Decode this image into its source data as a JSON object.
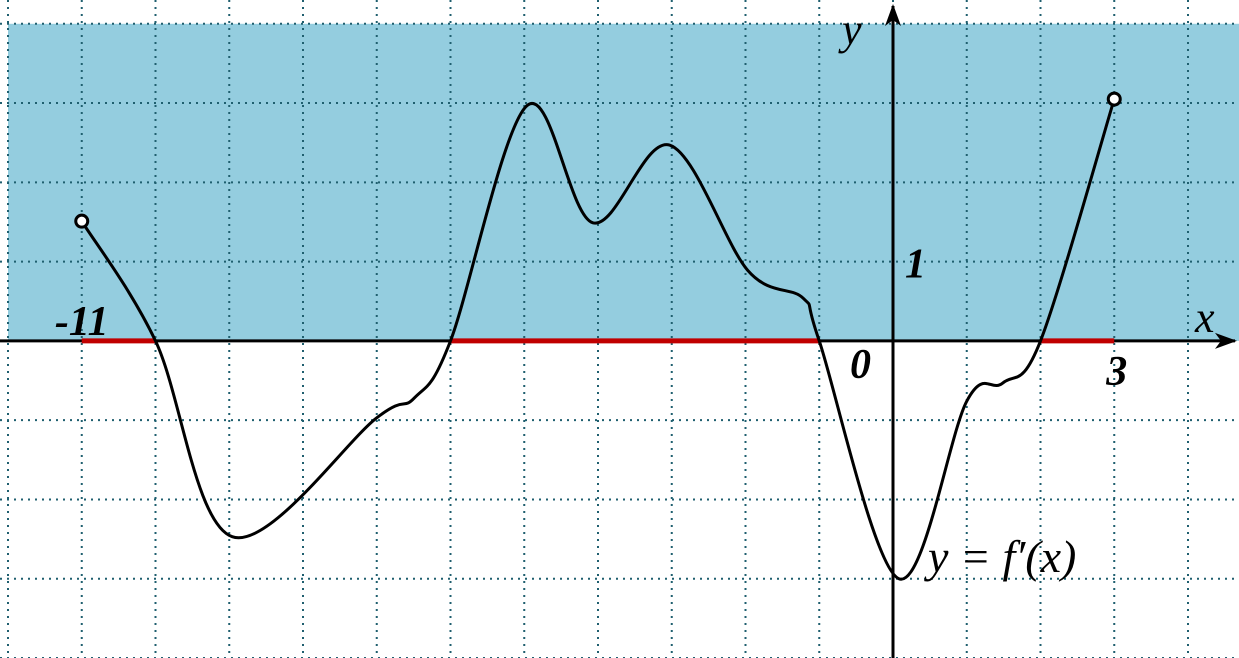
{
  "chart_data": {
    "type": "line",
    "x_label": "x",
    "y_label": "y",
    "curve_label": "y = f′(x)",
    "origin_label": "0",
    "x": [
      -11,
      -10,
      -8.96,
      -7,
      -6.49,
      -6,
      -4.96,
      -4.07,
      -3.03,
      -1.97,
      -1.22,
      -1,
      0.08,
      1,
      1.49,
      2,
      3
    ],
    "y": [
      1.51,
      0,
      -2.47,
      -0.97,
      -0.72,
      0,
      2.97,
      1.49,
      2.47,
      0.89,
      0.54,
      0,
      -3.0,
      -0.76,
      -0.53,
      0,
      3.05
    ],
    "color": "#000000",
    "open_ends": true,
    "highlight_intervals": [
      [
        -11,
        -10
      ],
      [
        -6,
        -1
      ],
      [
        2,
        3
      ]
    ],
    "highlight_color": "#c00000",
    "positive_fill": "#94cddf",
    "xlim": [
      -12,
      4.8
    ],
    "ylim": [
      -4,
      4.3
    ],
    "xticks": [
      -11,
      3
    ],
    "yticks": [
      1
    ],
    "grid": true,
    "grid_color": "#1f5f6f"
  }
}
